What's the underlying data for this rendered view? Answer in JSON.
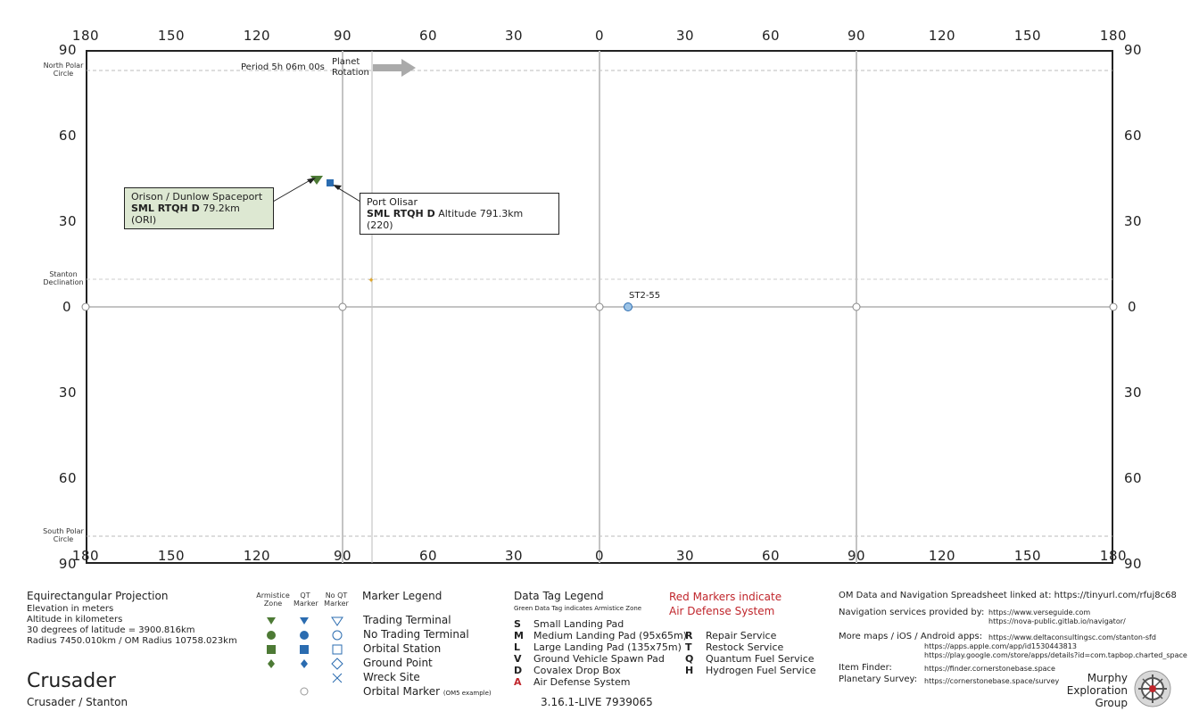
{
  "map": {
    "lon_labels": [
      "180",
      "150",
      "120",
      "90",
      "60",
      "30",
      "0",
      "30",
      "60",
      "90",
      "120",
      "150",
      "180"
    ],
    "lat_labels_left": [
      "90",
      "60",
      "30",
      "0",
      "30",
      "60",
      "90"
    ],
    "lat_labels_right": [
      "90",
      "60",
      "30",
      "0",
      "30",
      "60",
      "90"
    ],
    "circles": {
      "north_polar": "North Polar Circle",
      "south_polar": "South Polar Circle",
      "stanton_declination": "Stanton Declination"
    },
    "rotation": {
      "period": "Period 5h 06m 00s",
      "label": "Planet Rotation"
    },
    "locations": [
      {
        "name": "Orison / Dunlow Spaceport",
        "codes": "SML RTQH D",
        "detail": "79.2km (ORI)",
        "longitude": -100,
        "latitude": 44.5,
        "marker": "ground-vehicle-armistice"
      },
      {
        "name": "Port Olisar",
        "codes": "SML RTQH D",
        "detail": "Altitude 791.3km (220)",
        "longitude": -95,
        "latitude": 43,
        "marker": "orbital-station-qt"
      }
    ],
    "orbital_marker_label": "ST2-55",
    "colors": {
      "armistice": "#4d7a35",
      "qt": "#2b6cb0",
      "declination": "#e0a526"
    }
  },
  "info": {
    "projection": "Equirectangular  Projection",
    "lines": [
      "Elevation in meters",
      "Altitude in kilometers",
      "30 degrees of latitude = 3900.816km",
      "Radius 7450.010km / OM Radius 10758.023km"
    ],
    "planet_name": "Crusader",
    "system": "Crusader / Stanton"
  },
  "marker_legend": {
    "col_headers": [
      "Armistice Zone",
      "QT Marker",
      "No QT Marker"
    ],
    "title": "Marker Legend",
    "items": [
      "Trading Terminal",
      "No Trading Terminal",
      "Orbital Station",
      "Ground Point",
      "Wreck Site",
      "Orbital Marker"
    ],
    "orbital_note": "(OM5 example)"
  },
  "data_tag_legend": {
    "title": "Data Tag Legend",
    "subtitle": "Green Data Tag indicates Armistice Zone",
    "left": [
      {
        "key": "S",
        "label": "Small Landing Pad"
      },
      {
        "key": "M",
        "label": "Medium Landing Pad (95x65m)"
      },
      {
        "key": "L",
        "label": "Large Landing Pad (135x75m)"
      },
      {
        "key": "V",
        "label": "Ground Vehicle Spawn Pad"
      },
      {
        "key": "D",
        "label": "Covalex Drop Box"
      },
      {
        "key": "A",
        "label": "Air Defense System"
      }
    ],
    "right": [
      {
        "key": "R",
        "label": "Repair Service"
      },
      {
        "key": "T",
        "label": "Restock Service"
      },
      {
        "key": "Q",
        "label": "Quantum Fuel Service"
      },
      {
        "key": "H",
        "label": "Hydrogen Fuel Service"
      }
    ],
    "red_note_1": "Red Markers indicate",
    "red_note_2": "Air Defense System",
    "version": "3.16.1-LIVE 7939065"
  },
  "links": {
    "spreadsheet": "OM Data and Navigation Spreadsheet linked at: https://tinyurl.com/rfuj8c68",
    "nav_label": "Navigation services provided by:",
    "nav_urls": [
      "https://www.verseguide.com",
      "https://nova-public.gitlab.io/navigator/"
    ],
    "apps_label": "More maps / iOS / Android apps:",
    "apps_urls": [
      "https://www.deltaconsultingsc.com/stanton-sfd",
      "https://apps.apple.com/app/id1530443813",
      "https://play.google.com/store/apps/details?id=com.tapbop.charted_space"
    ],
    "finder_label": "Item Finder:",
    "finder_url": "https://finder.cornerstonebase.space",
    "survey_label": "Planetary Survey:",
    "survey_url": "https://cornerstonebase.space/survey",
    "group_lines": [
      "Murphy",
      "Exploration",
      "Group"
    ]
  }
}
